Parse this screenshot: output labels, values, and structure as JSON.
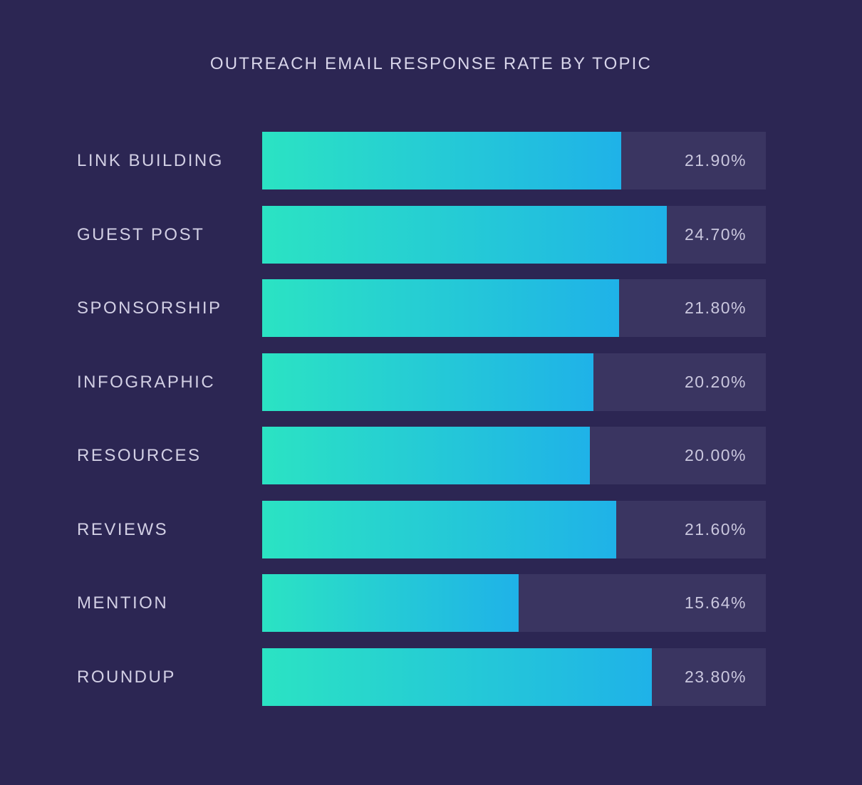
{
  "page": {
    "background_color": "#2c2653"
  },
  "chart_data": {
    "type": "bar",
    "orientation": "horizontal",
    "title": "OUTREACH EMAIL RESPONSE RATE BY TOPIC",
    "categories": [
      "LINK BUILDING",
      "GUEST POST",
      "SPONSORSHIP",
      "INFOGRAPHIC",
      "RESOURCES",
      "REVIEWS",
      "MENTION",
      "ROUNDUP"
    ],
    "values": [
      21.9,
      24.7,
      21.8,
      20.2,
      20.0,
      21.6,
      15.64,
      23.8
    ],
    "value_labels": [
      "21.90%",
      "24.70%",
      "21.80%",
      "20.20%",
      "20.00%",
      "21.60%",
      "15.64%",
      "23.80%"
    ],
    "xlabel": "",
    "ylabel": "",
    "xlim": [
      0,
      30.74
    ],
    "grid": false,
    "legend": false,
    "value_label_position": "inside-track-right",
    "colors": {
      "bar_gradient_start": "#2be3c3",
      "bar_gradient_end": "#1fb2e8",
      "track": "#3a3561",
      "background": "#2c2653",
      "title_text": "#d8d5ea",
      "category_text": "#d2cfe4",
      "value_text": "#cac7de"
    }
  }
}
